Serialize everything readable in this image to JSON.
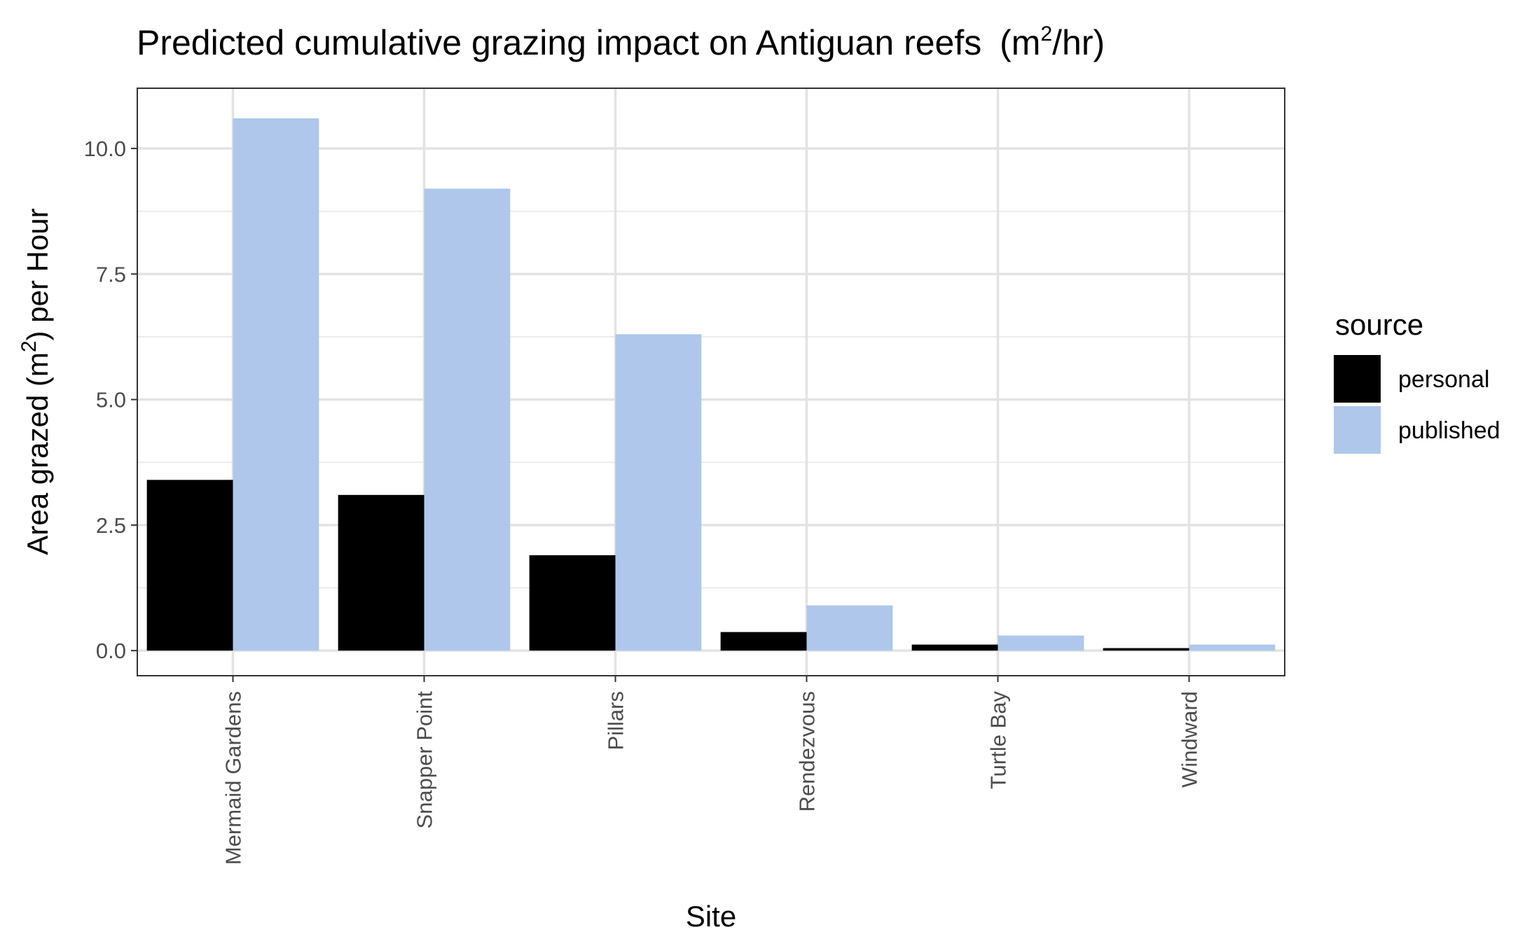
{
  "chart_data": {
    "type": "bar",
    "title": "Predicted cumulative grazing impact on Antiguan reefs",
    "title_unit": {
      "open": "(m",
      "sup": "2",
      "close": "/hr)"
    },
    "xlabel": "Site",
    "ylabel": {
      "pre": "Area grazed (m",
      "sup": "2",
      "post": ") per Hour"
    },
    "categories": [
      "Mermaid Gardens",
      "Snapper Point",
      "Pillars",
      "Rendezvous",
      "Turtle Bay",
      "Windward"
    ],
    "series": [
      {
        "name": "personal",
        "color": "#000000",
        "values": [
          3.4,
          3.1,
          1.9,
          0.37,
          0.12,
          0.05
        ]
      },
      {
        "name": "published",
        "color": "#aec7eb",
        "values": [
          10.6,
          9.2,
          6.3,
          0.9,
          0.3,
          0.12
        ]
      }
    ],
    "ylim": [
      -0.5,
      11.2
    ],
    "yticks": [
      0.0,
      2.5,
      5.0,
      7.5,
      10.0
    ],
    "ytick_labels": [
      "0.0",
      "2.5",
      "5.0",
      "7.5",
      "10.0"
    ],
    "grid": true,
    "legend": {
      "title": "source",
      "position": "right"
    }
  }
}
